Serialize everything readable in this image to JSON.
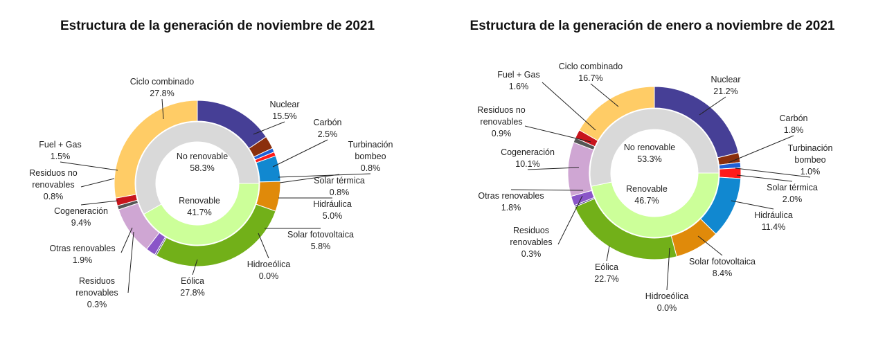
{
  "colors": {
    "nuclear": "#463f96",
    "carbon": "#8b2f0d",
    "turbinacion": "#1f5fd6",
    "solar_termica": "#ff1a1a",
    "hidraulica": "#1188d0",
    "solar_fv": "#e08a0a",
    "hidroeolica": "#7faa1e",
    "eolica": "#72b019",
    "residuos_ren": "#4a3a8c",
    "otras_ren": "#8a55c8",
    "cogeneracion": "#cfa6d3",
    "residuos_no_ren": "#555555",
    "fuel_gas": "#c8141c",
    "ciclo": "#ffcc66",
    "no_renovable": "#d9d9d9",
    "renovable": "#ccff99"
  },
  "chart_data": [
    {
      "type": "pie",
      "subtype": "double-donut",
      "title": "Estructura de la generación de noviembre de 2021",
      "outer": [
        {
          "name": "Nuclear",
          "value": 15.5,
          "display": "15.5%",
          "color_key": "nuclear"
        },
        {
          "name": "Carbón",
          "value": 2.5,
          "display": "2.5%",
          "color_key": "carbon"
        },
        {
          "name": "Turbinación bombeo",
          "line1": "Turbinación",
          "line2": "bombeo",
          "value": 0.8,
          "display": "0.8%",
          "color_key": "turbinacion"
        },
        {
          "name": "Solar térmica",
          "value": 0.8,
          "display": "0.8%",
          "color_key": "solar_termica"
        },
        {
          "name": "Hidráulica",
          "value": 5.0,
          "display": "5.0%",
          "color_key": "hidraulica"
        },
        {
          "name": "Solar fotovoltaica",
          "value": 5.8,
          "display": "5.8%",
          "color_key": "solar_fv"
        },
        {
          "name": "Hidroeólica",
          "value": 0.0,
          "display": "0.0%",
          "color_key": "hidroeolica"
        },
        {
          "name": "Eólica",
          "value": 27.8,
          "display": "27.8%",
          "color_key": "eolica"
        },
        {
          "name": "Residuos renovables",
          "line1": "Residuos",
          "line2": "renovables",
          "value": 0.3,
          "display": "0.3%",
          "color_key": "residuos_ren"
        },
        {
          "name": "Otras renovables",
          "value": 1.9,
          "display": "1.9%",
          "color_key": "otras_ren"
        },
        {
          "name": "Cogeneración",
          "value": 9.4,
          "display": "9.4%",
          "color_key": "cogeneracion"
        },
        {
          "name": "Residuos no renovables",
          "line1": "Residuos no",
          "line2": "renovables",
          "value": 0.8,
          "display": "0.8%",
          "color_key": "residuos_no_ren"
        },
        {
          "name": "Fuel + Gas",
          "value": 1.5,
          "display": "1.5%",
          "color_key": "fuel_gas"
        },
        {
          "name": "Ciclo combinado",
          "value": 27.8,
          "display": "27.8%",
          "color_key": "ciclo"
        }
      ],
      "inner": [
        {
          "name": "Renovable",
          "value": 41.7,
          "display": "41.7%",
          "color_key": "renovable"
        },
        {
          "name": "No renovable",
          "value": 58.3,
          "display": "58.3%",
          "color_key": "no_renovable"
        }
      ]
    },
    {
      "type": "pie",
      "subtype": "double-donut",
      "title": "Estructura de la generación de enero a noviembre de 2021",
      "outer": [
        {
          "name": "Nuclear",
          "value": 21.2,
          "display": "21.2%",
          "color_key": "nuclear"
        },
        {
          "name": "Carbón",
          "value": 1.8,
          "display": "1.8%",
          "color_key": "carbon"
        },
        {
          "name": "Turbinación bombeo",
          "line1": "Turbinación",
          "line2": "bombeo",
          "value": 1.0,
          "display": "1.0%",
          "color_key": "turbinacion"
        },
        {
          "name": "Solar térmica",
          "value": 2.0,
          "display": "2.0%",
          "color_key": "solar_termica"
        },
        {
          "name": "Hidráulica",
          "value": 11.4,
          "display": "11.4%",
          "color_key": "hidraulica"
        },
        {
          "name": "Solar fotovoltaica",
          "value": 8.4,
          "display": "8.4%",
          "color_key": "solar_fv"
        },
        {
          "name": "Hidroeólica",
          "value": 0.0,
          "display": "0.0%",
          "color_key": "hidroeolica"
        },
        {
          "name": "Eólica",
          "value": 22.7,
          "display": "22.7%",
          "color_key": "eolica"
        },
        {
          "name": "Residuos renovables",
          "line1": "Residuos",
          "line2": "renovables",
          "value": 0.3,
          "display": "0.3%",
          "color_key": "residuos_ren"
        },
        {
          "name": "Otras renovables",
          "value": 1.8,
          "display": "1.8%",
          "color_key": "otras_ren"
        },
        {
          "name": "Cogeneración",
          "value": 10.1,
          "display": "10.1%",
          "color_key": "cogeneracion"
        },
        {
          "name": "Residuos no renovables",
          "line1": "Residuos no",
          "line2": "renovables",
          "value": 0.9,
          "display": "0.9%",
          "color_key": "residuos_no_ren"
        },
        {
          "name": "Fuel + Gas",
          "value": 1.6,
          "display": "1.6%",
          "color_key": "fuel_gas"
        },
        {
          "name": "Ciclo combinado",
          "value": 16.7,
          "display": "16.7%",
          "color_key": "ciclo"
        }
      ],
      "inner": [
        {
          "name": "Renovable",
          "value": 46.7,
          "display": "46.7%",
          "color_key": "renovable"
        },
        {
          "name": "No renovable",
          "value": 53.3,
          "display": "53.3%",
          "color_key": "no_renovable"
        }
      ]
    }
  ]
}
